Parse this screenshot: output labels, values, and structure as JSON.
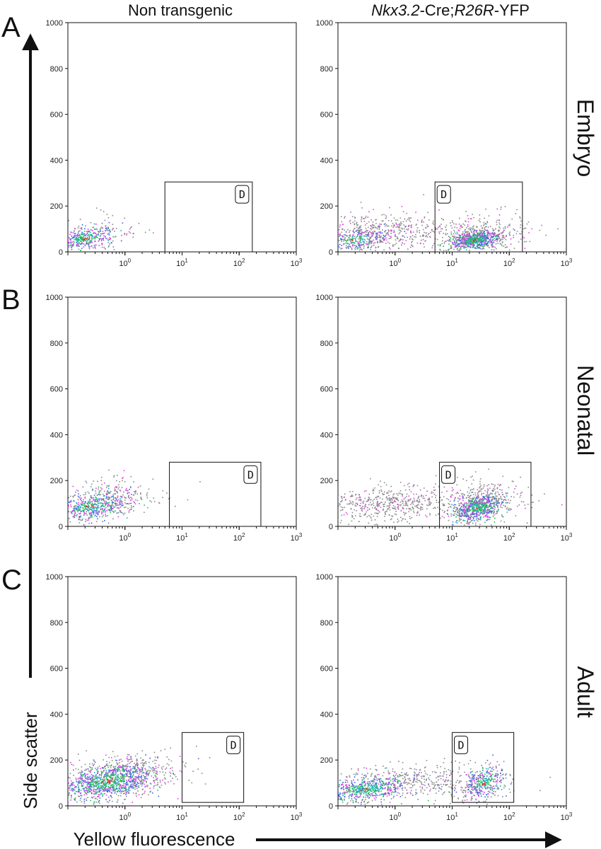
{
  "figure": {
    "columns": [
      {
        "id": "nontg",
        "title": "Non transgenic"
      },
      {
        "id": "tg",
        "title_parts": [
          {
            "text": "Nkx3.2",
            "italic": true
          },
          {
            "text": "-Cre;",
            "italic": false
          },
          {
            "text": "R26R",
            "italic": true
          },
          {
            "text": "-YFP",
            "italic": false
          }
        ]
      }
    ],
    "rows": [
      {
        "letter": "A",
        "label": "Embryo"
      },
      {
        "letter": "B",
        "label": "Neonatal"
      },
      {
        "letter": "C",
        "label": "Adult"
      }
    ],
    "xlabel": "Yellow fluorescence",
    "ylabel": "Side scatter",
    "y_ticks": [
      "0",
      "200",
      "400",
      "600",
      "800",
      "1000"
    ],
    "x_ticks": [
      {
        "base": "10",
        "exp": "0"
      },
      {
        "base": "10",
        "exp": "1"
      },
      {
        "base": "10",
        "exp": "2"
      },
      {
        "base": "10",
        "exp": "3"
      }
    ],
    "gate_label": "D",
    "colors": {
      "gray": "#8a8a8a",
      "magenta": "#e23ee6",
      "blue": "#3a5fe0",
      "cyan": "#2aa6c8",
      "green": "#19c24a",
      "red": "#d81e1e",
      "ink": "#111111"
    }
  },
  "chart_data": [
    {
      "type": "scatter",
      "panel": "A-left",
      "row": "Embryo",
      "column": "Non transgenic",
      "title": "",
      "xlabel": "Yellow fluorescence",
      "ylabel": "Side scatter",
      "x_scale": "log",
      "xlim": [
        0.1,
        1000
      ],
      "ylim": [
        0,
        1000
      ],
      "gate": {
        "name": "D",
        "x_range": [
          5,
          170
        ],
        "y_range": [
          0,
          305
        ]
      },
      "populations": [
        {
          "name": "main",
          "x_center": 0.2,
          "x_spread_decades": 0.3,
          "y_center": 60,
          "y_spread": 25,
          "count": 400,
          "density": "high"
        },
        {
          "name": "tail",
          "x_center": 0.5,
          "x_spread_decades": 0.4,
          "y_center": 110,
          "y_spread": 40,
          "count": 40,
          "density": "low"
        }
      ]
    },
    {
      "type": "scatter",
      "panel": "A-right",
      "row": "Embryo",
      "column": "Nkx3.2-Cre;R26R-YFP",
      "title": "",
      "xlabel": "Yellow fluorescence",
      "ylabel": "Side scatter",
      "x_scale": "log",
      "xlim": [
        0.1,
        1000
      ],
      "ylim": [
        0,
        1000
      ],
      "gate": {
        "name": "D",
        "x_range": [
          5,
          170
        ],
        "y_range": [
          0,
          305
        ]
      },
      "populations": [
        {
          "name": "negative",
          "x_center": 0.2,
          "x_spread_decades": 0.35,
          "y_center": 55,
          "y_spread": 25,
          "count": 300,
          "density": "high"
        },
        {
          "name": "negative-spread",
          "x_center": 0.6,
          "x_spread_decades": 0.6,
          "y_center": 95,
          "y_spread": 40,
          "count": 450,
          "density": "low"
        },
        {
          "name": "YFP-positive",
          "x_center": 25,
          "x_spread_decades": 0.25,
          "y_center": 55,
          "y_spread": 20,
          "count": 700,
          "density": "high"
        },
        {
          "name": "YFP-positive-halo",
          "x_center": 30,
          "x_spread_decades": 0.45,
          "y_center": 95,
          "y_spread": 45,
          "count": 250,
          "density": "low"
        }
      ]
    },
    {
      "type": "scatter",
      "panel": "B-left",
      "row": "Neonatal",
      "column": "Non transgenic",
      "title": "",
      "xlabel": "Yellow fluorescence",
      "ylabel": "Side scatter",
      "x_scale": "log",
      "xlim": [
        0.1,
        1000
      ],
      "ylim": [
        0,
        1000
      ],
      "gate": {
        "name": "D",
        "x_range": [
          6,
          240
        ],
        "y_range": [
          0,
          280
        ]
      },
      "populations": [
        {
          "name": "main",
          "x_center": 0.25,
          "x_spread_decades": 0.35,
          "y_center": 90,
          "y_spread": 30,
          "count": 550,
          "density": "high"
        },
        {
          "name": "tail",
          "x_center": 0.6,
          "x_spread_decades": 0.45,
          "y_center": 140,
          "y_spread": 40,
          "count": 180,
          "density": "low"
        }
      ]
    },
    {
      "type": "scatter",
      "panel": "B-right",
      "row": "Neonatal",
      "column": "Nkx3.2-Cre;R26R-YFP",
      "title": "",
      "xlabel": "Yellow fluorescence",
      "ylabel": "Side scatter",
      "x_scale": "log",
      "xlim": [
        0.1,
        1000
      ],
      "ylim": [
        0,
        1000
      ],
      "gate": {
        "name": "D",
        "x_range": [
          6,
          240
        ],
        "y_range": [
          0,
          280
        ]
      },
      "populations": [
        {
          "name": "negative-spread",
          "x_center": 0.8,
          "x_spread_decades": 0.55,
          "y_center": 100,
          "y_spread": 40,
          "count": 500,
          "density": "low"
        },
        {
          "name": "YFP-positive",
          "x_center": 28,
          "x_spread_decades": 0.22,
          "y_center": 85,
          "y_spread": 30,
          "count": 700,
          "density": "high"
        },
        {
          "name": "YFP-positive-halo",
          "x_center": 35,
          "x_spread_decades": 0.45,
          "y_center": 120,
          "y_spread": 45,
          "count": 250,
          "density": "low"
        }
      ]
    },
    {
      "type": "scatter",
      "panel": "C-left",
      "row": "Adult",
      "column": "Non transgenic",
      "title": "",
      "xlabel": "Yellow fluorescence",
      "ylabel": "Side scatter",
      "x_scale": "log",
      "xlim": [
        0.1,
        1000
      ],
      "ylim": [
        0,
        1000
      ],
      "gate": {
        "name": "D",
        "x_range": [
          10,
          120
        ],
        "y_range": [
          15,
          320
        ]
      },
      "populations": [
        {
          "name": "main",
          "x_center": 0.5,
          "x_spread_decades": 0.45,
          "y_center": 110,
          "y_spread": 40,
          "count": 1100,
          "density": "high"
        },
        {
          "name": "tail",
          "x_center": 1.5,
          "x_spread_decades": 0.45,
          "y_center": 150,
          "y_spread": 40,
          "count": 250,
          "density": "low"
        }
      ]
    },
    {
      "type": "scatter",
      "panel": "C-right",
      "row": "Adult",
      "column": "Nkx3.2-Cre;R26R-YFP",
      "title": "",
      "xlabel": "Yellow fluorescence",
      "ylabel": "Side scatter",
      "x_scale": "log",
      "xlim": [
        0.1,
        1000
      ],
      "ylim": [
        0,
        1000
      ],
      "gate": {
        "name": "D",
        "x_range": [
          10,
          120
        ],
        "y_range": [
          15,
          320
        ]
      },
      "populations": [
        {
          "name": "negative",
          "x_center": 0.3,
          "x_spread_decades": 0.45,
          "y_center": 75,
          "y_spread": 30,
          "count": 650,
          "density": "high"
        },
        {
          "name": "spread",
          "x_center": 3,
          "x_spread_decades": 0.7,
          "y_center": 110,
          "y_spread": 40,
          "count": 350,
          "density": "low"
        },
        {
          "name": "YFP-positive",
          "x_center": 35,
          "x_spread_decades": 0.2,
          "y_center": 100,
          "y_spread": 35,
          "count": 350,
          "density": "high"
        }
      ]
    }
  ]
}
